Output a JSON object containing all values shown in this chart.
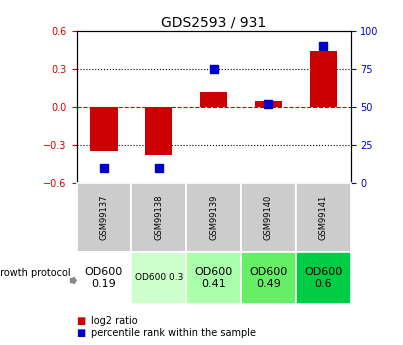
{
  "title": "GDS2593 / 931",
  "samples": [
    "GSM99137",
    "GSM99138",
    "GSM99139",
    "GSM99140",
    "GSM99141"
  ],
  "log2_ratio": [
    -0.35,
    -0.38,
    0.12,
    0.05,
    0.44
  ],
  "percentile_rank": [
    10,
    10,
    75,
    52,
    90
  ],
  "ylim_left": [
    -0.6,
    0.6
  ],
  "ylim_right": [
    0,
    100
  ],
  "yticks_left": [
    -0.6,
    -0.3,
    0.0,
    0.3,
    0.6
  ],
  "yticks_right": [
    0,
    25,
    50,
    75,
    100
  ],
  "bar_color": "#cc0000",
  "scatter_color": "#0000cc",
  "dotted_line_color": "#000000",
  "zero_line_color": "#cc0000",
  "growth_protocol_labels": [
    "OD600\n0.19",
    "OD600 0.3",
    "OD600\n0.41",
    "OD600\n0.49",
    "OD600\n0.6"
  ],
  "growth_protocol_colors": [
    "#ffffff",
    "#ccffcc",
    "#aaffaa",
    "#66ee66",
    "#00cc44"
  ],
  "growth_protocol_font_sizes": [
    8,
    6.5,
    8,
    8,
    8
  ],
  "gsm_bg_color": "#cccccc",
  "legend_red_label": "log2 ratio",
  "legend_blue_label": "percentile rank within the sample",
  "chart_bg": "#ffffff"
}
